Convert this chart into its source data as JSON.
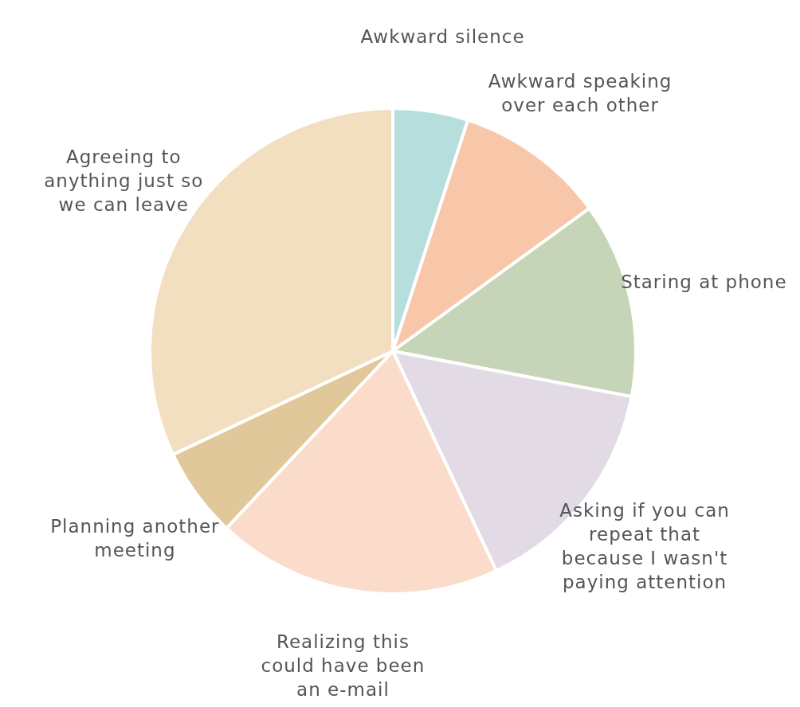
{
  "chart_data": {
    "type": "pie",
    "categories": [
      "Awkward silence",
      "Awkward speaking over each other",
      "Staring at phone",
      "Asking if you can repeat that because I wasn't paying attention",
      "Realizing this could have been an e-mail",
      "Planning another meeting",
      "Agreeing to anything just so we can leave"
    ],
    "values": [
      5,
      10,
      13,
      15,
      19,
      6,
      32
    ],
    "colors": [
      "#b5dedd",
      "#f8c6a8",
      "#c6d5b8",
      "#e2dbe6",
      "#fbdcca",
      "#e0c89b",
      "#f1dfc0"
    ]
  }
}
